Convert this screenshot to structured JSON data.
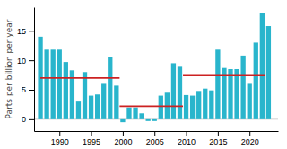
{
  "chart_data": {
    "type": "bar",
    "ylabel": "Parts per billion per year",
    "x": [
      1987,
      1988,
      1989,
      1990,
      1991,
      1992,
      1993,
      1994,
      1995,
      1996,
      1997,
      1998,
      1999,
      2000,
      2001,
      2002,
      2003,
      2004,
      2005,
      2006,
      2007,
      2008,
      2009,
      2010,
      2011,
      2012,
      2013,
      2014,
      2015,
      2016,
      2017,
      2018,
      2019,
      2020,
      2021,
      2022,
      2023
    ],
    "values": [
      14.0,
      11.8,
      11.8,
      11.8,
      9.7,
      8.3,
      3.0,
      8.0,
      4.0,
      4.2,
      6.0,
      10.5,
      5.7,
      -0.5,
      2.0,
      2.0,
      1.0,
      -0.3,
      -0.3,
      4.0,
      4.5,
      9.5,
      8.9,
      4.1,
      4.0,
      4.8,
      5.2,
      4.9,
      11.8,
      8.7,
      8.5,
      8.5,
      10.8,
      6.0,
      13.0,
      18.0,
      15.8
    ],
    "color": "#29b5cc",
    "mean_lines": {
      "color": "#cc2222",
      "start": [
        1987.0,
        1999.5,
        2009.5
      ],
      "end": [
        1999.5,
        2009.5,
        2022.5
      ],
      "values": [
        7.0,
        2.2,
        7.4
      ]
    },
    "xlim": [
      1986.0,
      2024.5
    ],
    "xticks": [
      1990,
      1995,
      2000,
      2005,
      2010,
      2015,
      2020
    ],
    "ylim": [
      -2,
      19
    ],
    "yticks": [
      0,
      5,
      10,
      15
    ],
    "grid": false
  }
}
